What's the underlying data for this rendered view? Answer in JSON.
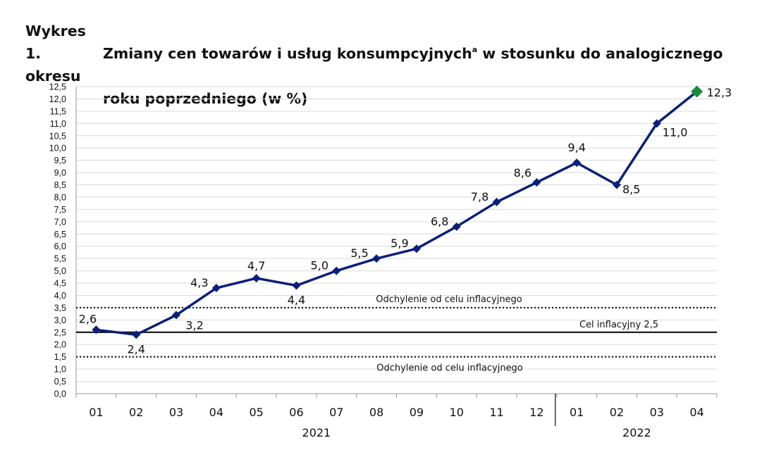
{
  "title": {
    "prefix": "Wykres 1.",
    "line1": "Zmiany cen towarów i usług konsumpcyjnych",
    "superscript": "a",
    "line1_end": " w stosunku do analogicznego okresu",
    "line2": "roku poprzedniego (w %)"
  },
  "chart_data": {
    "type": "line",
    "title": "Zmiany cen towarów i usług konsumpcyjnych w stosunku do analogicznego okresu roku poprzedniego (w %)",
    "categories": [
      "01",
      "02",
      "03",
      "04",
      "05",
      "06",
      "07",
      "08",
      "09",
      "10",
      "11",
      "12",
      "01",
      "02",
      "03",
      "04"
    ],
    "year_groups": [
      {
        "label": "2021",
        "from": 0,
        "to": 11
      },
      {
        "label": "2022",
        "from": 12,
        "to": 15
      }
    ],
    "series": [
      {
        "color": "#0a1f7a",
        "highlight_color": "#1a8a3a",
        "values": [
          2.6,
          2.4,
          3.2,
          4.3,
          4.7,
          4.4,
          5.0,
          5.5,
          5.9,
          6.8,
          7.8,
          8.6,
          9.4,
          8.5,
          11.0,
          12.3
        ],
        "labels": [
          "2,6",
          "2,4",
          "3,2",
          "4,3",
          "4,7",
          "4,4",
          "5,0",
          "5,5",
          "5,9",
          "6,8",
          "7,8",
          "8,6",
          "9,4",
          "8,5",
          "11,0",
          "12,3"
        ]
      }
    ],
    "reference_lines": [
      {
        "value": 3.5,
        "style": "dotted",
        "label": "Odchylenie od celu inflacyjnego"
      },
      {
        "value": 2.5,
        "style": "solid",
        "label": "Cel inflacyjny 2,5"
      },
      {
        "value": 1.5,
        "style": "dotted",
        "label": "Odchylenie od celu inflacyjnego"
      }
    ],
    "ylim": [
      0,
      12.5
    ],
    "ytick_step": 0.5,
    "grid": true,
    "decimal_separator": ","
  }
}
